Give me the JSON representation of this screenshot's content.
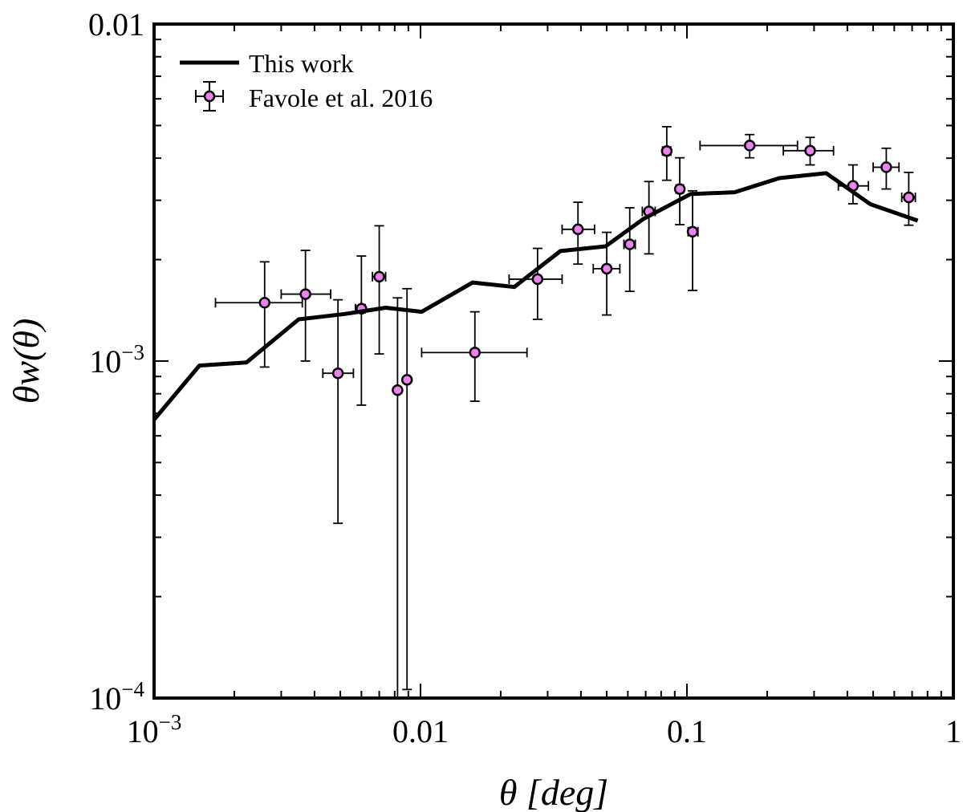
{
  "chart_data": {
    "type": "line",
    "xscale": "log",
    "yscale": "log",
    "xlim": [
      0.001,
      1
    ],
    "ylim": [
      0.0001,
      0.01
    ],
    "xlabel": "θ [deg]",
    "ylabel": "θw(θ)",
    "x_ticks": [
      {
        "value": 0.001,
        "base": "10",
        "exp": "−3"
      },
      {
        "value": 0.01,
        "text": "0.01"
      },
      {
        "value": 0.1,
        "text": "0.1"
      },
      {
        "value": 1,
        "text": "1"
      }
    ],
    "y_ticks": [
      {
        "value": 0.0001,
        "base": "10",
        "exp": "−4"
      },
      {
        "value": 0.001,
        "base": "10",
        "exp": "−3"
      },
      {
        "value": 0.01,
        "text": "0.01"
      }
    ],
    "legend": {
      "position": "top-left",
      "entries": [
        {
          "label": "This work",
          "kind": "line"
        },
        {
          "label": "Favole et al. 2016",
          "kind": "errorbar"
        }
      ]
    },
    "colors": {
      "line": "#000000",
      "marker_fill": "#ee82ee",
      "marker_edge": "#000000"
    },
    "series": [
      {
        "name": "This work",
        "kind": "line",
        "x": [
          0.001,
          0.00148,
          0.00222,
          0.00349,
          0.0052,
          0.0074,
          0.0101,
          0.0157,
          0.0225,
          0.0335,
          0.0495,
          0.0686,
          0.103,
          0.151,
          0.222,
          0.333,
          0.488,
          0.735
        ],
        "y": [
          0.00067,
          0.00097,
          0.00099,
          0.00133,
          0.00138,
          0.00144,
          0.0014,
          0.00171,
          0.00166,
          0.00212,
          0.00219,
          0.00264,
          0.00313,
          0.00317,
          0.00349,
          0.00361,
          0.00292,
          0.00261
        ]
      },
      {
        "name": "Favole et al. 2016",
        "kind": "errorbar",
        "points": [
          {
            "x": 0.0026,
            "y": 0.00149,
            "xerr": [
              0.0017,
              0.0036
            ],
            "yerr": [
              0.00096,
              0.00197
            ]
          },
          {
            "x": 0.0037,
            "y": 0.00158,
            "xerr": [
              0.003,
              0.0046
            ],
            "yerr": [
              0.001,
              0.00213
            ]
          },
          {
            "x": 0.0049,
            "y": 0.00092,
            "xerr": [
              0.0043,
              0.0056
            ],
            "yerr": [
              0.00033,
              0.00152
            ]
          },
          {
            "x": 0.006,
            "y": 0.00143,
            "xerr": [
              0.0057,
              0.0062
            ],
            "yerr": [
              0.00074,
              0.00205
            ]
          },
          {
            "x": 0.007,
            "y": 0.00178,
            "xerr": [
              0.0066,
              0.0074
            ],
            "yerr": [
              0.00105,
              0.00252
            ]
          },
          {
            "x": 0.0082,
            "y": 0.00082,
            "xerr": [
              0.0082,
              0.0082
            ],
            "yerr": [
              0.0001,
              0.00154
            ]
          },
          {
            "x": 0.0089,
            "y": 0.00088,
            "xerr": [
              0.0087,
              0.0091
            ],
            "yerr": [
              0.000106,
              0.00164
            ]
          },
          {
            "x": 0.016,
            "y": 0.00106,
            "xerr": [
              0.0101,
              0.0251
            ],
            "yerr": [
              0.00076,
              0.0014
            ]
          },
          {
            "x": 0.0275,
            "y": 0.00175,
            "xerr": [
              0.0215,
              0.034
            ],
            "yerr": [
              0.00133,
              0.00216
            ]
          },
          {
            "x": 0.039,
            "y": 0.00246,
            "xerr": [
              0.034,
              0.045
            ],
            "yerr": [
              0.00194,
              0.00296
            ]
          },
          {
            "x": 0.05,
            "y": 0.00188,
            "xerr": [
              0.0445,
              0.056
            ],
            "yerr": [
              0.00137,
              0.00241
            ]
          },
          {
            "x": 0.061,
            "y": 0.00222,
            "xerr": [
              0.058,
              0.064
            ],
            "yerr": [
              0.00161,
              0.00285
            ]
          },
          {
            "x": 0.072,
            "y": 0.00278,
            "xerr": [
              0.068,
              0.076
            ],
            "yerr": [
              0.00208,
              0.00341
            ]
          },
          {
            "x": 0.084,
            "y": 0.0042,
            "xerr": [
              0.081,
              0.087
            ],
            "yerr": [
              0.00344,
              0.00496
            ]
          },
          {
            "x": 0.094,
            "y": 0.00324,
            "xerr": [
              0.091,
              0.097
            ],
            "yerr": [
              0.00254,
              0.00401
            ]
          },
          {
            "x": 0.105,
            "y": 0.00242,
            "xerr": [
              0.101,
              0.11
            ],
            "yerr": [
              0.00162,
              0.0032
            ]
          },
          {
            "x": 0.172,
            "y": 0.00436,
            "xerr": [
              0.112,
              0.26
            ],
            "yerr": [
              0.00401,
              0.0047
            ]
          },
          {
            "x": 0.29,
            "y": 0.00421,
            "xerr": [
              0.23,
              0.355
            ],
            "yerr": [
              0.00382,
              0.00461
            ]
          },
          {
            "x": 0.42,
            "y": 0.00331,
            "xerr": [
              0.37,
              0.48
            ],
            "yerr": [
              0.00293,
              0.00382
            ]
          },
          {
            "x": 0.56,
            "y": 0.00376,
            "xerr": [
              0.5,
              0.625
            ],
            "yerr": [
              0.00324,
              0.00428
            ]
          },
          {
            "x": 0.68,
            "y": 0.00306,
            "xerr": [
              0.64,
              0.72
            ],
            "yerr": [
              0.00253,
              0.00363
            ]
          }
        ]
      }
    ]
  }
}
